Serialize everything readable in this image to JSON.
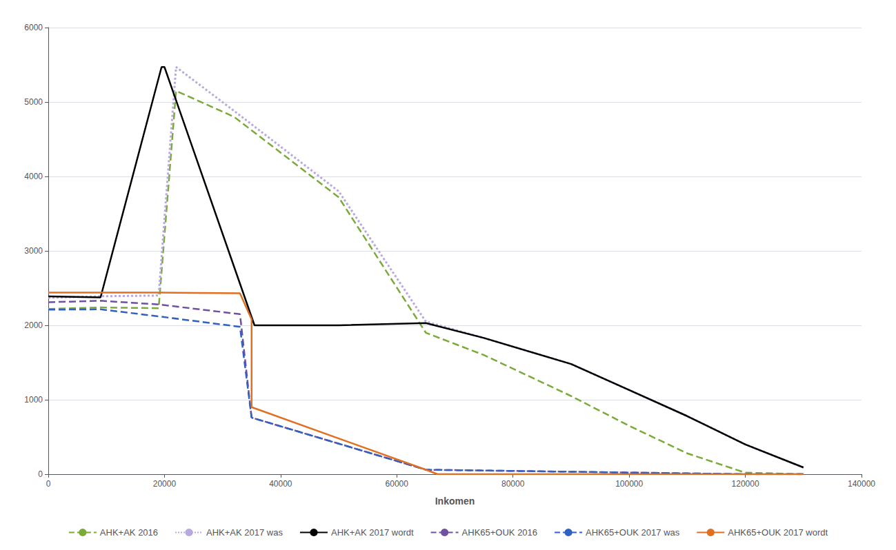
{
  "chart_data": {
    "type": "line",
    "xlabel": "Inkomen",
    "xlim": [
      0,
      140000
    ],
    "ylim": [
      0,
      6000
    ],
    "xticks": [
      0,
      20000,
      40000,
      60000,
      80000,
      100000,
      120000,
      140000
    ],
    "yticks": [
      0,
      1000,
      2000,
      3000,
      4000,
      5000,
      6000
    ],
    "grid": "y",
    "legend": "bottom",
    "series": [
      {
        "name": "AHK+AK 2016",
        "color": "#7aaa3a",
        "line_style": "dashed",
        "x": [
          0,
          9000,
          19000,
          22000,
          32000,
          50000,
          65000,
          75000,
          90000,
          100000,
          110000,
          120000,
          130000
        ],
        "values": [
          2220,
          2240,
          2230,
          5150,
          4800,
          3720,
          1900,
          1600,
          1050,
          650,
          280,
          20,
          0
        ]
      },
      {
        "name": "AHK+AK 2017 was",
        "color": "#b8a8e0",
        "line_style": "dotted",
        "x": [
          0,
          9000,
          19000,
          22000,
          32000,
          50000,
          65000,
          75000,
          90000,
          100000,
          110000,
          120000,
          130000
        ],
        "values": [
          2370,
          2390,
          2400,
          5470,
          4880,
          3800,
          2050,
          1830,
          1480,
          1130,
          780,
          400,
          90
        ]
      },
      {
        "name": "AHK+AK 2017 wordt",
        "color": "#000000",
        "line_style": "solid",
        "x": [
          0,
          9000,
          19500,
          20000,
          35500,
          50000,
          65000,
          75000,
          90000,
          100000,
          110000,
          120000,
          130000
        ],
        "values": [
          2390,
          2375,
          5470,
          5470,
          2000,
          2000,
          2030,
          1830,
          1480,
          1130,
          780,
          400,
          90
        ]
      },
      {
        "name": "AHK65+OUK 2016",
        "color": "#7050a0",
        "line_style": "dashed",
        "x": [
          0,
          9000,
          19000,
          33000,
          35000,
          65000,
          120000,
          130000
        ],
        "values": [
          2310,
          2330,
          2280,
          2150,
          760,
          60,
          0,
          0
        ]
      },
      {
        "name": "AHK65+OUK 2017 was",
        "color": "#3060c0",
        "line_style": "dashed",
        "x": [
          0,
          9000,
          19000,
          33000,
          35000,
          65000,
          120000,
          130000
        ],
        "values": [
          2210,
          2215,
          2120,
          1980,
          760,
          60,
          0,
          0
        ]
      },
      {
        "name": "AHK65+OUK 2017 wordt",
        "color": "#e07020",
        "line_style": "solid",
        "x": [
          0,
          9000,
          19000,
          33000,
          35000,
          35001,
          65000,
          67000,
          120000,
          130000
        ],
        "values": [
          2440,
          2440,
          2440,
          2430,
          2080,
          900,
          60,
          0,
          0,
          0
        ]
      }
    ]
  }
}
